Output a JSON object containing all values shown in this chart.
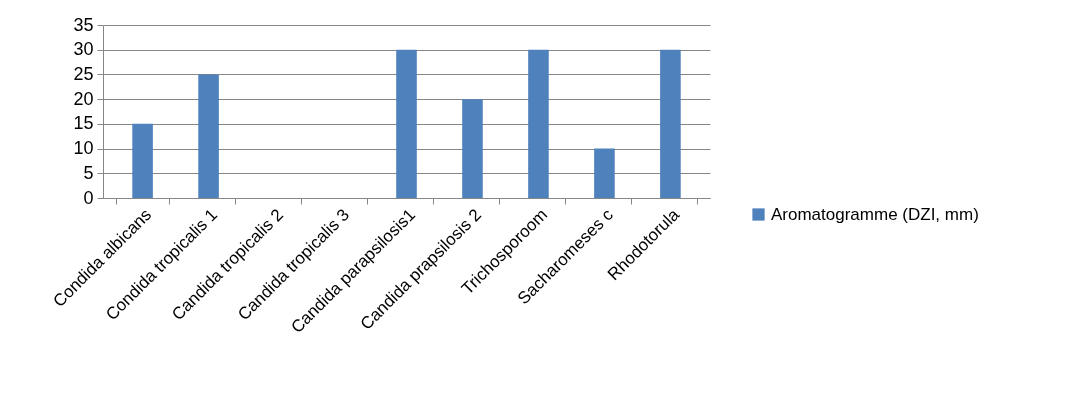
{
  "chart_data": {
    "type": "bar",
    "categories": [
      "Condida albicans",
      "Condida tropicalis 1",
      "Candida tropicalis 2",
      "Candida tropicalis 3",
      "Candida parapsilosis1",
      "Candida prapsilosis 2",
      "Trichosporoom",
      "Sacharomeses c",
      "Rhodotorula"
    ],
    "series": [
      {
        "name": "Aromatogramme (DZI, mm)",
        "color": "#4f81bd",
        "values": [
          15,
          25,
          0,
          0,
          30,
          20,
          30,
          10,
          30
        ]
      }
    ],
    "ylim": [
      0,
      35
    ],
    "yticks": [
      0,
      5,
      10,
      15,
      20,
      25,
      30,
      35
    ],
    "grid": "y",
    "legend": "right"
  }
}
